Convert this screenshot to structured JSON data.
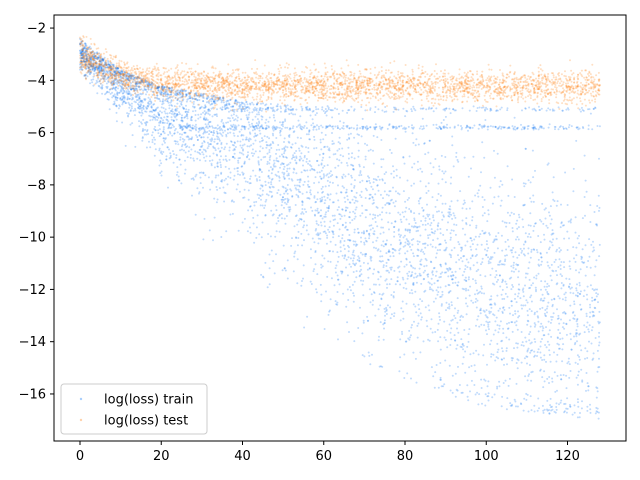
{
  "chart_data": {
    "type": "scatter",
    "title": "",
    "xlabel": "",
    "ylabel": "",
    "xlim": [
      -6.4,
      134.4
    ],
    "ylim": [
      -17.8,
      -1.5
    ],
    "x_ticks": [
      0,
      20,
      40,
      60,
      80,
      100,
      120
    ],
    "y_ticks": [
      -2,
      -4,
      -6,
      -8,
      -10,
      -12,
      -14,
      -16
    ],
    "x_range_of_points": [
      0,
      128
    ],
    "grid": false,
    "legend_location": "lower left",
    "series": [
      {
        "name": "log(loss) train",
        "color": "#0a72f5",
        "marker_size": 1,
        "alpha": 0.25,
        "summary": {
          "start_value": -3.0,
          "plateau_bands": [
            -5.1,
            -5.8
          ],
          "upper_envelope": [
            [
              0,
              -2.4
            ],
            [
              10,
              -3.6
            ],
            [
              20,
              -4.2
            ],
            [
              40,
              -4.8
            ],
            [
              60,
              -5.0
            ],
            [
              128,
              -5.0
            ]
          ],
          "lower_envelope": [
            [
              0,
              -3.6
            ],
            [
              20,
              -9.0
            ],
            [
              40,
              -12.0
            ],
            [
              60,
              -14.0
            ],
            [
              80,
              -15.5
            ],
            [
              100,
              -16.5
            ],
            [
              128,
              -17.0
            ]
          ],
          "dense_center": [
            [
              0,
              -3.0
            ],
            [
              10,
              -4.0
            ],
            [
              20,
              -5.0
            ],
            [
              40,
              -6.5
            ],
            [
              60,
              -8.5
            ],
            [
              80,
              -10.5
            ],
            [
              100,
              -12.0
            ],
            [
              128,
              -13.0
            ]
          ]
        }
      },
      {
        "name": "log(loss) test",
        "color": "#ff7f0e",
        "marker_size": 1,
        "alpha": 0.25,
        "summary": {
          "start_value": -3.0,
          "band_center": [
            [
              0,
              -3.0
            ],
            [
              10,
              -3.8
            ],
            [
              20,
              -4.1
            ],
            [
              40,
              -4.2
            ],
            [
              128,
              -4.2
            ]
          ],
          "band_half_width": 0.55
        }
      }
    ]
  }
}
